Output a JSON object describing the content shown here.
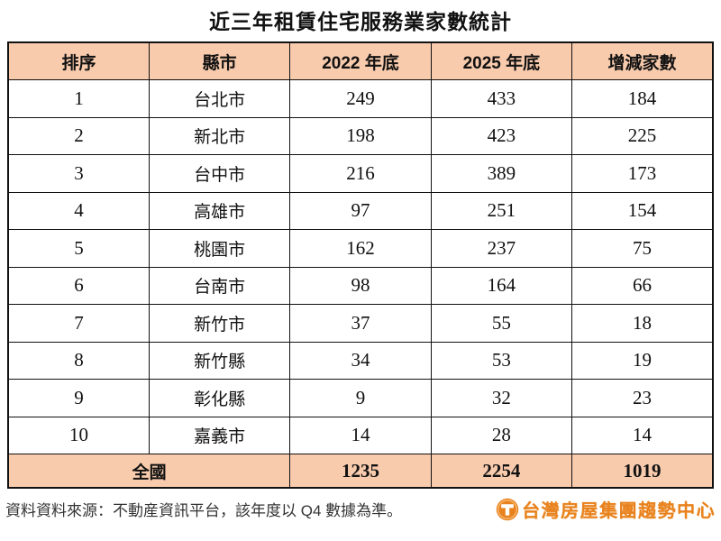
{
  "title": "近三年租賃住宅服務業家數統計",
  "table": {
    "headers": [
      "排序",
      "縣市",
      "2022 年底",
      "2025 年底",
      "增減家數"
    ],
    "rows": [
      {
        "rank": "1",
        "city": "台北市",
        "y2022": "249",
        "y2025": "433",
        "change": "184"
      },
      {
        "rank": "2",
        "city": "新北市",
        "y2022": "198",
        "y2025": "423",
        "change": "225"
      },
      {
        "rank": "3",
        "city": "台中市",
        "y2022": "216",
        "y2025": "389",
        "change": "173"
      },
      {
        "rank": "4",
        "city": "高雄市",
        "y2022": "97",
        "y2025": "251",
        "change": "154"
      },
      {
        "rank": "5",
        "city": "桃園市",
        "y2022": "162",
        "y2025": "237",
        "change": "75"
      },
      {
        "rank": "6",
        "city": "台南市",
        "y2022": "98",
        "y2025": "164",
        "change": "66"
      },
      {
        "rank": "7",
        "city": "新竹市",
        "y2022": "37",
        "y2025": "55",
        "change": "18"
      },
      {
        "rank": "8",
        "city": "新竹縣",
        "y2022": "34",
        "y2025": "53",
        "change": "19"
      },
      {
        "rank": "9",
        "city": "彰化縣",
        "y2022": "9",
        "y2025": "32",
        "change": "23"
      },
      {
        "rank": "10",
        "city": "嘉義市",
        "y2022": "14",
        "y2025": "28",
        "change": "14"
      }
    ],
    "total": {
      "label": "全國",
      "y2022": "1235",
      "y2025": "2254",
      "change": "1019"
    }
  },
  "footer": {
    "source_note": "資料資料來源：不動産資訊平台，該年度以 Q4 數據為準。"
  },
  "logo": {
    "icon": "t-circle-icon",
    "text": "台灣房屋集團趨勢中心"
  },
  "colors": {
    "header_bg": "#F8CBAD",
    "total_bg": "#F8CBAD",
    "border": "#111111",
    "logo_orange": "#E8821E"
  },
  "chart_data": {
    "type": "table",
    "title": "近三年租賃住宅服務業家數統計",
    "columns": [
      "排序",
      "縣市",
      "2022 年底",
      "2025 年底",
      "增減家數"
    ],
    "rows": [
      [
        1,
        "台北市",
        249,
        433,
        184
      ],
      [
        2,
        "新北市",
        198,
        423,
        225
      ],
      [
        3,
        "台中市",
        216,
        389,
        173
      ],
      [
        4,
        "高雄市",
        97,
        251,
        154
      ],
      [
        5,
        "桃園市",
        162,
        237,
        75
      ],
      [
        6,
        "台南市",
        98,
        164,
        66
      ],
      [
        7,
        "新竹市",
        37,
        55,
        18
      ],
      [
        8,
        "新竹縣",
        34,
        53,
        19
      ],
      [
        9,
        "彰化縣",
        9,
        32,
        23
      ],
      [
        10,
        "嘉義市",
        14,
        28,
        14
      ]
    ],
    "total_row": [
      "全國",
      1235,
      2254,
      1019
    ],
    "source": "資料資料來源：不動産資訊平台，該年度以 Q4 數據為準。"
  }
}
